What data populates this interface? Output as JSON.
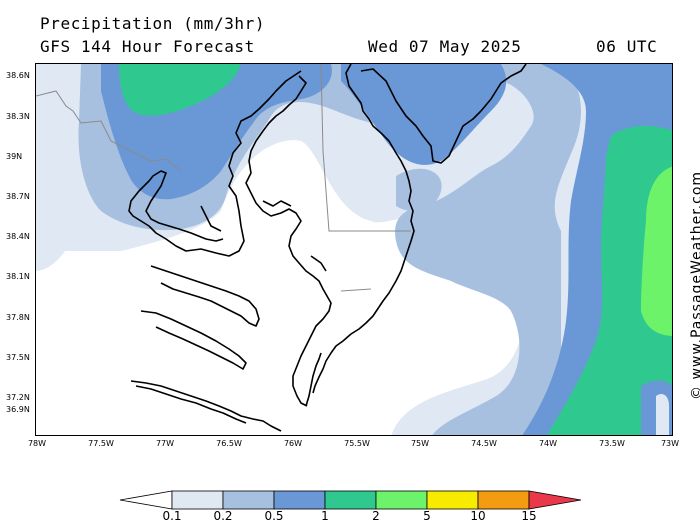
{
  "header": {
    "title": "Precipitation (mm/3hr)",
    "subtitle": "GFS 144 Hour Forecast",
    "valid_date": "Wed 07 May 2025",
    "valid_time": "06 UTC"
  },
  "axes": {
    "latitude_labels": [
      "38.6N",
      "38.3N",
      "39N",
      "38.7N",
      "38.4N",
      "38.1N",
      "37.8N",
      "37.5N",
      "37.2N",
      "36.9N"
    ],
    "longitude_labels": [
      "78W",
      "77.5W",
      "77W",
      "76.5W",
      "76W",
      "75.5W",
      "75W",
      "74.5W",
      "74W",
      "73.5W",
      "73W"
    ]
  },
  "legend": {
    "labels": [
      "0.1",
      "0.2",
      "0.5",
      "1",
      "2",
      "5",
      "10",
      "15"
    ],
    "colors": [
      "#ffffff",
      "#e0e8f4",
      "#a8c0e0",
      "#6a98d6",
      "#2fc98f",
      "#6df36a",
      "#f7ec00",
      "#f39c12",
      "#e8384a"
    ]
  },
  "watermark": "© www.PassageWeather.com",
  "colors": {
    "coastline": "#000000",
    "border": "#8a8a8a"
  }
}
